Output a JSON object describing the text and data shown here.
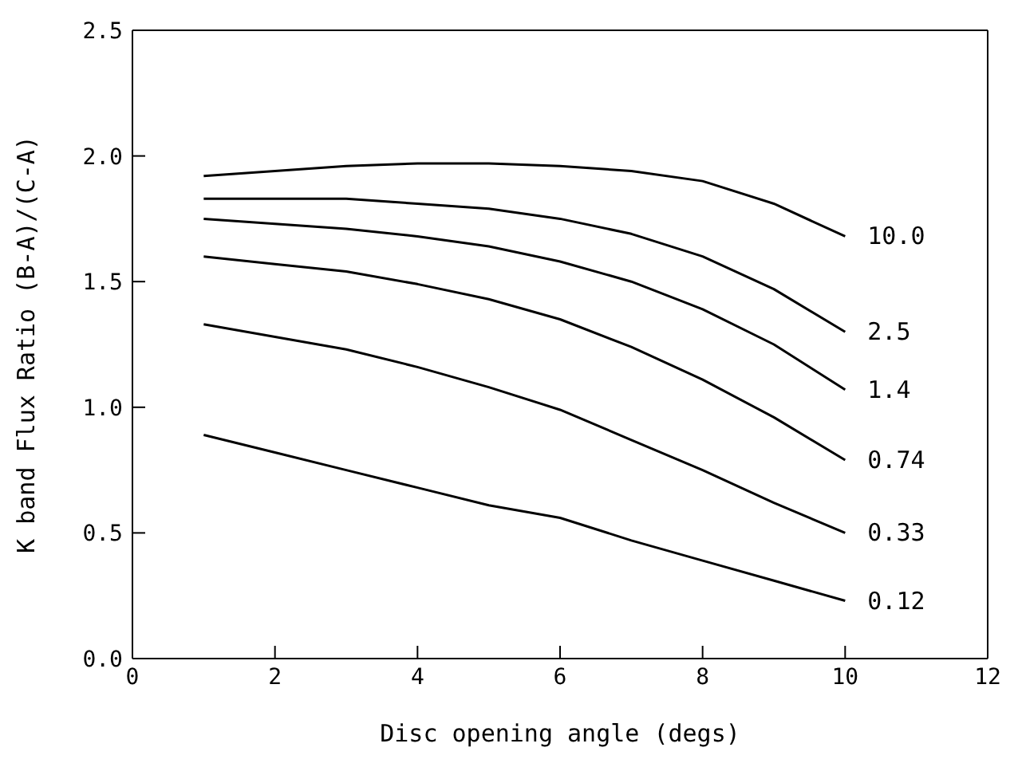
{
  "chart_data": {
    "type": "line",
    "xlabel": "Disc opening angle (degs)",
    "ylabel": "K band Flux Ratio (B-A)/(C-A)",
    "x": [
      1,
      2,
      3,
      4,
      5,
      6,
      7,
      8,
      9,
      10
    ],
    "xlim": [
      0,
      12
    ],
    "xticks": [
      0,
      2,
      4,
      6,
      8,
      10,
      12
    ],
    "ylim": [
      0,
      2.5
    ],
    "yticks": [
      {
        "value": 0,
        "label": "0.0"
      },
      0.5,
      {
        "value": 1,
        "label": "1.0"
      },
      1.5,
      {
        "value": 2,
        "label": "2.0"
      },
      2.5
    ],
    "grid": false,
    "legend": false,
    "marker": "none",
    "line_style": "solid",
    "series": [
      {
        "name": "10.0",
        "color": "#000000",
        "values": [
          1.92,
          1.94,
          1.96,
          1.97,
          1.97,
          1.96,
          1.94,
          1.9,
          1.81,
          1.68
        ]
      },
      {
        "name": "2.5",
        "color": "#000000",
        "values": [
          1.83,
          1.83,
          1.83,
          1.81,
          1.79,
          1.75,
          1.69,
          1.6,
          1.47,
          1.3
        ]
      },
      {
        "name": "1.4",
        "color": "#000000",
        "values": [
          1.75,
          1.73,
          1.71,
          1.68,
          1.64,
          1.58,
          1.5,
          1.39,
          1.25,
          1.07
        ]
      },
      {
        "name": "0.74",
        "color": "#000000",
        "values": [
          1.6,
          1.57,
          1.54,
          1.49,
          1.43,
          1.35,
          1.24,
          1.11,
          0.96,
          0.79
        ]
      },
      {
        "name": "0.33",
        "color": "#000000",
        "values": [
          1.33,
          1.28,
          1.23,
          1.16,
          1.08,
          0.99,
          0.87,
          0.75,
          0.62,
          0.5
        ]
      },
      {
        "name": "0.12",
        "color": "#000000",
        "values": [
          0.89,
          0.82,
          0.75,
          0.68,
          0.61,
          0.56,
          0.47,
          0.39,
          0.31,
          0.23
        ]
      }
    ]
  }
}
